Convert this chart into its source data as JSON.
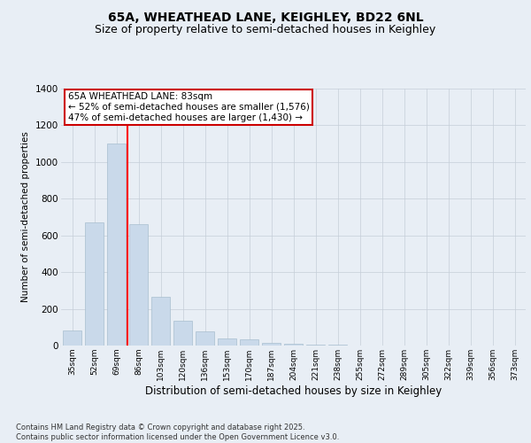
{
  "title": "65A, WHEATHEAD LANE, KEIGHLEY, BD22 6NL",
  "subtitle": "Size of property relative to semi-detached houses in Keighley",
  "xlabel": "Distribution of semi-detached houses by size in Keighley",
  "ylabel": "Number of semi-detached properties",
  "categories": [
    "35sqm",
    "52sqm",
    "69sqm",
    "86sqm",
    "103sqm",
    "120sqm",
    "136sqm",
    "153sqm",
    "170sqm",
    "187sqm",
    "204sqm",
    "221sqm",
    "238sqm",
    "255sqm",
    "272sqm",
    "289sqm",
    "305sqm",
    "322sqm",
    "339sqm",
    "356sqm",
    "373sqm"
  ],
  "values": [
    80,
    670,
    1100,
    660,
    265,
    135,
    75,
    40,
    35,
    15,
    8,
    5,
    3,
    2,
    2,
    1,
    1,
    1,
    0,
    0,
    0
  ],
  "bar_color": "#c9d9ea",
  "bar_edge_color": "#a8bece",
  "redline_index": 2.5,
  "annotation_text1": "65A WHEATHEAD LANE: 83sqm",
  "annotation_text2": "← 52% of semi-detached houses are smaller (1,576)",
  "annotation_text3": "47% of semi-detached houses are larger (1,430) →",
  "ylim": [
    0,
    1400
  ],
  "yticks": [
    0,
    200,
    400,
    600,
    800,
    1000,
    1200,
    1400
  ],
  "bg_color": "#e8eef5",
  "plot_bg_color": "#e8eef5",
  "footer_line1": "Contains HM Land Registry data © Crown copyright and database right 2025.",
  "footer_line2": "Contains public sector information licensed under the Open Government Licence v3.0.",
  "title_fontsize": 10,
  "subtitle_fontsize": 9,
  "annotation_box_edge": "#cc0000",
  "grid_color": "#c5cdd8",
  "ann_fontsize": 7.5
}
